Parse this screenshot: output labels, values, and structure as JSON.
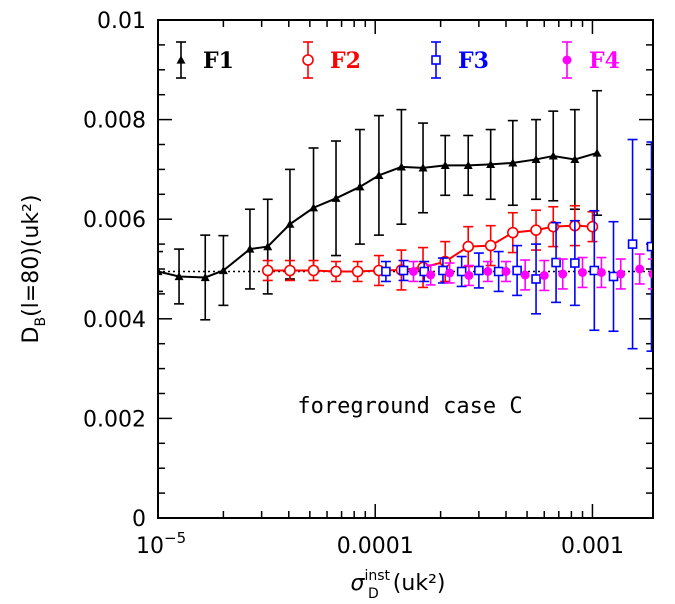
{
  "chart_data": {
    "type": "scatter",
    "title": "",
    "x_scale": "log",
    "xlim": [
      1e-05,
      0.0019
    ],
    "ylim": [
      0,
      0.01
    ],
    "x_tick_labels": [
      {
        "value": 1e-05,
        "base": "10",
        "exp": "−5"
      },
      {
        "value": 0.0001,
        "text": "0.0001"
      },
      {
        "value": 0.001,
        "text": "0.001"
      }
    ],
    "y_tick_labels": [
      {
        "value": 0,
        "text": "0"
      },
      {
        "value": 0.002,
        "text": "0.002"
      },
      {
        "value": 0.004,
        "text": "0.004"
      },
      {
        "value": 0.006,
        "text": "0.006"
      },
      {
        "value": 0.008,
        "text": "0.008"
      },
      {
        "value": 0.01,
        "text": "0.01"
      }
    ],
    "xlabel": {
      "main": "σ",
      "sub": "D",
      "sup": "inst",
      "rest": "(uk²)"
    },
    "ylabel": {
      "main": "D",
      "sub": "B",
      "rest": "(l=80)(uk²)"
    },
    "annotation": "foreground case C",
    "reference_line": {
      "y": 0.00495,
      "style": "dotted"
    },
    "legend_position": "top",
    "series": [
      {
        "name": "F1",
        "color": "#000000",
        "marker": "triangle",
        "connected": true,
        "x": [
          1e-05,
          1.25e-05,
          1.65e-05,
          2e-05,
          2.65e-05,
          3.2e-05,
          4.05e-05,
          5.2e-05,
          6.6e-05,
          8.5e-05,
          0.000104,
          0.000132,
          0.000166,
          0.00021,
          0.000268,
          0.00034,
          0.00043,
          0.00055,
          0.00066,
          0.00083,
          0.00105
        ],
        "y": [
          0.00495,
          0.00485,
          0.00483,
          0.00497,
          0.0054,
          0.00545,
          0.0059,
          0.00623,
          0.00642,
          0.00665,
          0.00688,
          0.00705,
          0.00703,
          0.00708,
          0.00708,
          0.0071,
          0.00713,
          0.0072,
          0.00727,
          0.0072,
          0.00733
        ],
        "err": [
          0.0004,
          0.00055,
          0.00085,
          0.0007,
          0.0008,
          0.00095,
          0.0011,
          0.0012,
          0.00115,
          0.00115,
          0.0012,
          0.00115,
          0.0009,
          0.0006,
          0.0006,
          0.0007,
          0.00085,
          0.0008,
          0.0009,
          0.001,
          0.00125
        ]
      },
      {
        "name": "F2",
        "color": "#ff0000",
        "marker": "circle-open",
        "connected": true,
        "x": [
          3.2e-05,
          4.05e-05,
          5.2e-05,
          6.6e-05,
          8.3e-05,
          0.000104,
          0.000132,
          0.000166,
          0.00021,
          0.000268,
          0.00034,
          0.00043,
          0.00055,
          0.00066,
          0.00083,
          0.001
        ],
        "y": [
          0.00497,
          0.00497,
          0.00497,
          0.00495,
          0.00495,
          0.00497,
          0.00498,
          0.00503,
          0.00515,
          0.00545,
          0.00547,
          0.00573,
          0.00578,
          0.00585,
          0.00587,
          0.00585
        ],
        "err": [
          0.0002,
          0.0002,
          0.0002,
          0.0002,
          0.0002,
          0.0003,
          0.0004,
          0.0004,
          0.0004,
          0.0004,
          0.0004,
          0.0004,
          0.0004,
          0.0004,
          0.0004,
          0.0003
        ]
      },
      {
        "name": "F3",
        "color": "#0000ff",
        "marker": "square-open",
        "connected": false,
        "x": [
          0.000112,
          0.000135,
          0.000168,
          0.000205,
          0.00025,
          0.0003,
          0.00037,
          0.00045,
          0.00055,
          0.00068,
          0.00083,
          0.00102,
          0.00125,
          0.00153,
          0.00187
        ],
        "y": [
          0.00495,
          0.00497,
          0.00495,
          0.00497,
          0.00495,
          0.00497,
          0.00495,
          0.00497,
          0.0048,
          0.00513,
          0.00512,
          0.00497,
          0.00485,
          0.0055,
          0.00545
        ],
        "err": [
          0.0002,
          0.0002,
          0.0002,
          0.00025,
          0.0003,
          0.00035,
          0.0004,
          0.0005,
          0.0007,
          0.0008,
          0.00085,
          0.0012,
          0.0011,
          0.0021,
          0.0021
        ]
      },
      {
        "name": "F4",
        "color": "#ff00ff",
        "marker": "circle-filled",
        "connected": false,
        "x": [
          0.00015,
          0.00018,
          0.00022,
          0.00027,
          0.00033,
          0.0004,
          0.00049,
          0.0006,
          0.00073,
          0.0009,
          0.0011,
          0.00135,
          0.00165,
          0.0019
        ],
        "y": [
          0.00495,
          0.00488,
          0.00492,
          0.00487,
          0.00495,
          0.00495,
          0.00488,
          0.00487,
          0.0049,
          0.00493,
          0.00493,
          0.0049,
          0.005,
          0.0049
        ],
        "err": [
          0.0002,
          0.0002,
          0.0002,
          0.0002,
          0.0002,
          0.0002,
          0.0003,
          0.0003,
          0.0003,
          0.0003,
          0.0003,
          0.0003,
          0.0003,
          0.0003
        ]
      }
    ]
  }
}
